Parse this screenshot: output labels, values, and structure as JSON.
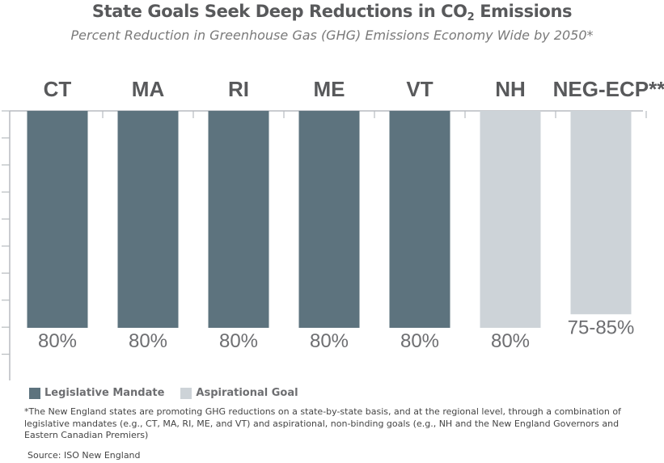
{
  "header": {
    "title_main": "State Goals Seek Deep Reductions in CO",
    "title_sub": "2",
    "title_end": " Emissions",
    "subtitle": "Percent Reduction in Greenhouse Gas (GHG) Emissions Economy Wide by 2050*"
  },
  "colors": {
    "mandate": "#5d737e",
    "aspirational": "#cdd3d8",
    "axis": "#b8bcc0",
    "category_label": "#58595b",
    "value_label": "#6d6e71"
  },
  "chart_data": {
    "type": "bar",
    "categories": [
      "CT",
      "MA",
      "RI",
      "ME",
      "VT",
      "NH",
      "NEG-ECP**"
    ],
    "values": [
      80,
      80,
      80,
      80,
      80,
      80,
      [
        75,
        85
      ]
    ],
    "value_labels": [
      "80%",
      "80%",
      "80%",
      "80%",
      "80%",
      "80%",
      "75-85%"
    ],
    "groups": [
      "Legislative Mandate",
      "Legislative Mandate",
      "Legislative Mandate",
      "Legislative Mandate",
      "Legislative Mandate",
      "Aspirational Goal",
      "Aspirational Goal"
    ],
    "ylim": [
      0,
      100
    ],
    "orientation": "bars hang from top axis",
    "legend_position": "bottom-left",
    "grid": false
  },
  "legend": {
    "items": [
      {
        "label": "Legislative Mandate",
        "color": "#5d737e"
      },
      {
        "label": "Aspirational Goal",
        "color": "#cdd3d8"
      }
    ]
  },
  "footnote": "*The New England states are promoting GHG reductions on a state-by-state basis, and at the regional level, through a combination of legislative mandates (e.g., CT, MA, RI, ME, and VT) and aspirational, non-binding goals (e.g., NH and the New England Governors and Eastern Canadian Premiers)",
  "source": "Source: ISO New England"
}
